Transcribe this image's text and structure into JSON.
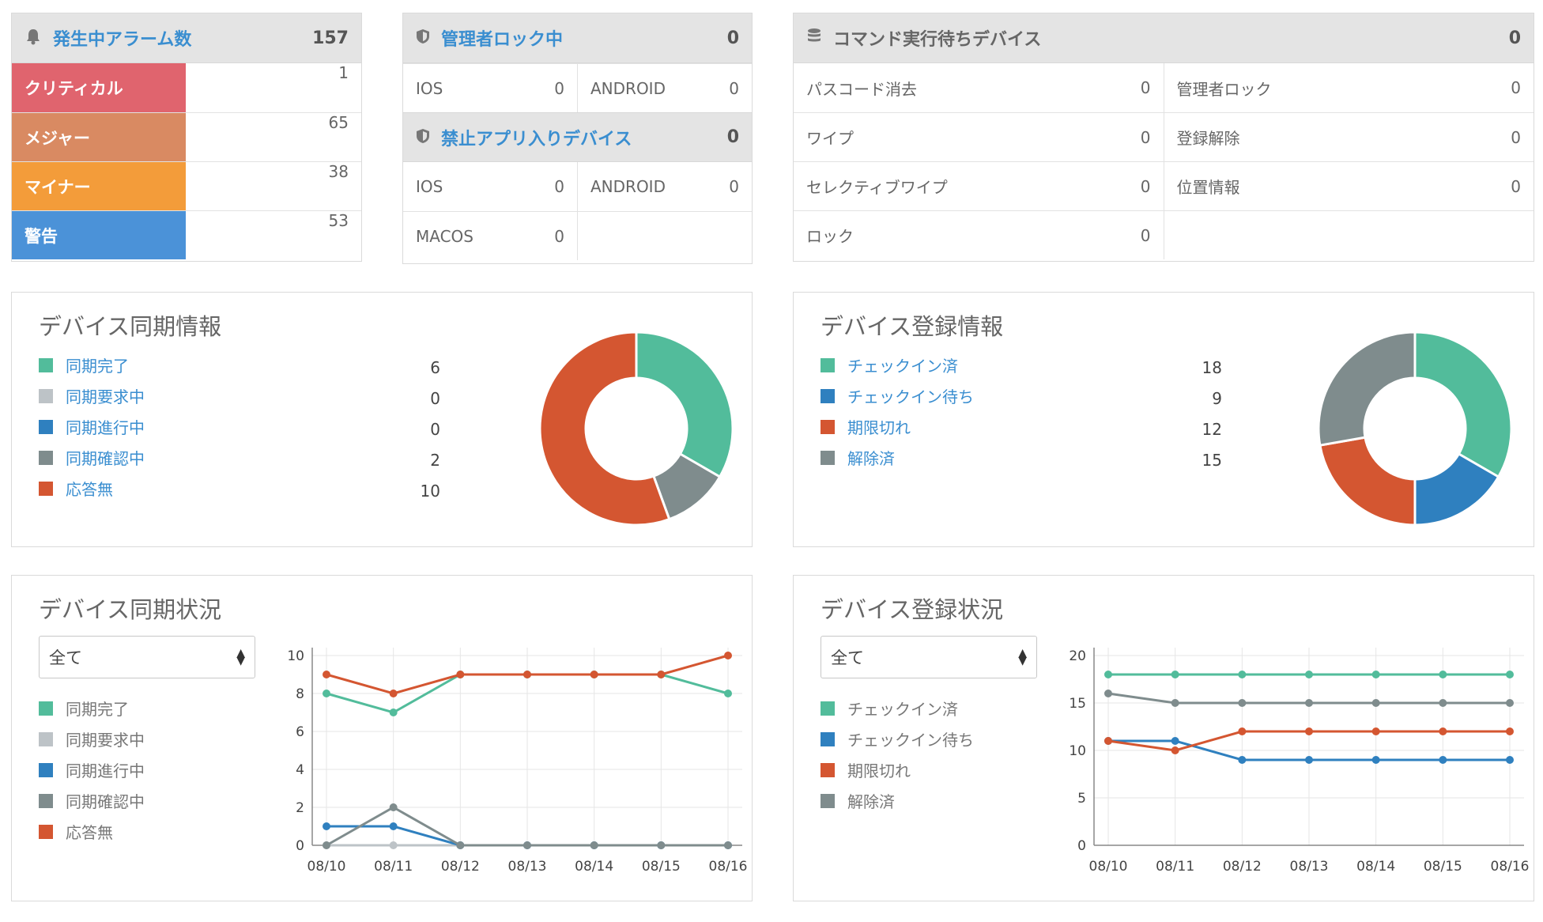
{
  "alarms": {
    "title": "発生中アラーム数",
    "count": "157",
    "rows": [
      {
        "label": "クリティカル",
        "value": "1",
        "color": "#e0646e"
      },
      {
        "label": "メジャー",
        "value": "65",
        "color": "#d98a62"
      },
      {
        "label": "マイナー",
        "value": "38",
        "color": "#f39c3a"
      },
      {
        "label": "警告",
        "value": "53",
        "color": "#4b92d8"
      }
    ]
  },
  "admin_lock": {
    "title": "管理者ロック中",
    "count": "0",
    "ios_label": "IOS",
    "ios_value": "0",
    "android_label": "ANDROID",
    "android_value": "0"
  },
  "banned_apps": {
    "title": "禁止アプリ入りデバイス",
    "count": "0",
    "ios_label": "IOS",
    "ios_value": "0",
    "android_label": "ANDROID",
    "android_value": "0",
    "macos_label": "MACOS",
    "macos_value": "0"
  },
  "commands": {
    "title": "コマンド実行待ちデバイス",
    "count": "0",
    "rows": [
      [
        {
          "label": "パスコード消去",
          "value": "0"
        },
        {
          "label": "管理者ロック",
          "value": "0"
        }
      ],
      [
        {
          "label": "ワイプ",
          "value": "0"
        },
        {
          "label": "登録解除",
          "value": "0"
        }
      ],
      [
        {
          "label": "セレクティブワイプ",
          "value": "0"
        },
        {
          "label": "位置情報",
          "value": "0"
        }
      ],
      [
        {
          "label": "ロック",
          "value": "0"
        },
        {
          "label": "",
          "value": ""
        }
      ]
    ]
  },
  "sync_info": {
    "title": "デバイス同期情報",
    "items": [
      {
        "label": "同期完了",
        "value": "6",
        "color": "#52bc9b"
      },
      {
        "label": "同期要求中",
        "value": "0",
        "color": "#bdc3c7"
      },
      {
        "label": "同期進行中",
        "value": "0",
        "color": "#2f80bf"
      },
      {
        "label": "同期確認中",
        "value": "2",
        "color": "#7f8c8d"
      },
      {
        "label": "応答無",
        "value": "10",
        "color": "#d45631"
      }
    ]
  },
  "enroll_info": {
    "title": "デバイス登録情報",
    "items": [
      {
        "label": "チェックイン済",
        "value": "18",
        "color": "#52bc9b"
      },
      {
        "label": "チェックイン待ち",
        "value": "9",
        "color": "#2f80bf"
      },
      {
        "label": "期限切れ",
        "value": "12",
        "color": "#d45631"
      },
      {
        "label": "解除済",
        "value": "15",
        "color": "#7f8c8d"
      }
    ]
  },
  "sync_status": {
    "title": "デバイス同期状況",
    "select_value": "全て"
  },
  "enroll_status": {
    "title": "デバイス登録状況",
    "select_value": "全て"
  },
  "chart_data": [
    {
      "type": "pie",
      "labels": [
        "同期完了",
        "同期要求中",
        "同期進行中",
        "同期確認中",
        "応答無"
      ],
      "values": [
        6,
        0,
        0,
        2,
        10
      ],
      "colors": [
        "#52bc9b",
        "#bdc3c7",
        "#2f80bf",
        "#7f8c8d",
        "#d45631"
      ]
    },
    {
      "type": "pie",
      "labels": [
        "チェックイン済",
        "チェックイン待ち",
        "期限切れ",
        "解除済"
      ],
      "values": [
        18,
        9,
        12,
        15
      ],
      "colors": [
        "#52bc9b",
        "#2f80bf",
        "#d45631",
        "#7f8c8d"
      ]
    },
    {
      "type": "line",
      "categories": [
        "08/10",
        "08/11",
        "08/12",
        "08/13",
        "08/14",
        "08/15",
        "08/16"
      ],
      "ylim": [
        0,
        10
      ],
      "yticks": [
        0,
        2,
        4,
        6,
        8,
        10
      ],
      "grid": true,
      "series": [
        {
          "name": "同期完了",
          "color": "#52bc9b",
          "values": [
            8,
            7,
            9,
            9,
            9,
            9,
            8
          ]
        },
        {
          "name": "同期要求中",
          "color": "#bdc3c7",
          "values": [
            0,
            0,
            0,
            0,
            0,
            0,
            0
          ]
        },
        {
          "name": "同期進行中",
          "color": "#2f80bf",
          "values": [
            1,
            1,
            0,
            0,
            0,
            0,
            0
          ]
        },
        {
          "name": "同期確認中",
          "color": "#7f8c8d",
          "values": [
            0,
            2,
            0,
            0,
            0,
            0,
            0
          ]
        },
        {
          "name": "応答無",
          "color": "#d45631",
          "values": [
            9,
            8,
            9,
            9,
            9,
            9,
            10
          ]
        }
      ]
    },
    {
      "type": "line",
      "categories": [
        "08/10",
        "08/11",
        "08/12",
        "08/13",
        "08/14",
        "08/15",
        "08/16"
      ],
      "ylim": [
        0,
        20
      ],
      "yticks": [
        0,
        5,
        10,
        15,
        20
      ],
      "grid": true,
      "series": [
        {
          "name": "チェックイン済",
          "color": "#52bc9b",
          "values": [
            18,
            18,
            18,
            18,
            18,
            18,
            18
          ]
        },
        {
          "name": "チェックイン待ち",
          "color": "#2f80bf",
          "values": [
            11,
            11,
            9,
            9,
            9,
            9,
            9
          ]
        },
        {
          "name": "期限切れ",
          "color": "#d45631",
          "values": [
            11,
            10,
            12,
            12,
            12,
            12,
            12
          ]
        },
        {
          "name": "解除済",
          "color": "#7f8c8d",
          "values": [
            16,
            15,
            15,
            15,
            15,
            15,
            15
          ]
        }
      ]
    }
  ]
}
